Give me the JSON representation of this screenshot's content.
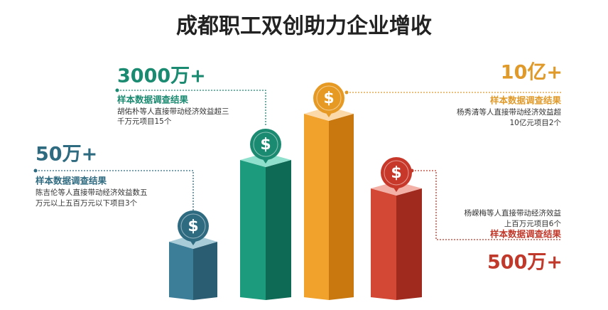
{
  "title": "成都职工双创助力企业增收",
  "items": [
    {
      "headline": "50万+",
      "subtitle": "样本数据调查结果",
      "lines": [
        "陈吉伦等人直接带动经济效益数五",
        "万元以上五百万元以下项目3个"
      ]
    },
    {
      "headline": "3000万+",
      "subtitle": "样本数据调查结果",
      "lines": [
        "胡佑朴等人直接带动经济效益超三",
        "千万元项目15个"
      ]
    },
    {
      "headline": "10亿+",
      "subtitle": "样本数据调查结果",
      "lines": [
        "杨秀清等人直接带动经济效益超",
        "10亿元项目2个"
      ]
    },
    {
      "headline": "500万+",
      "subtitle": "样本数据调查结果",
      "lines": [
        "杨嵘梅等人直接带动经济效益",
        "上百万元项目6个"
      ]
    }
  ]
}
